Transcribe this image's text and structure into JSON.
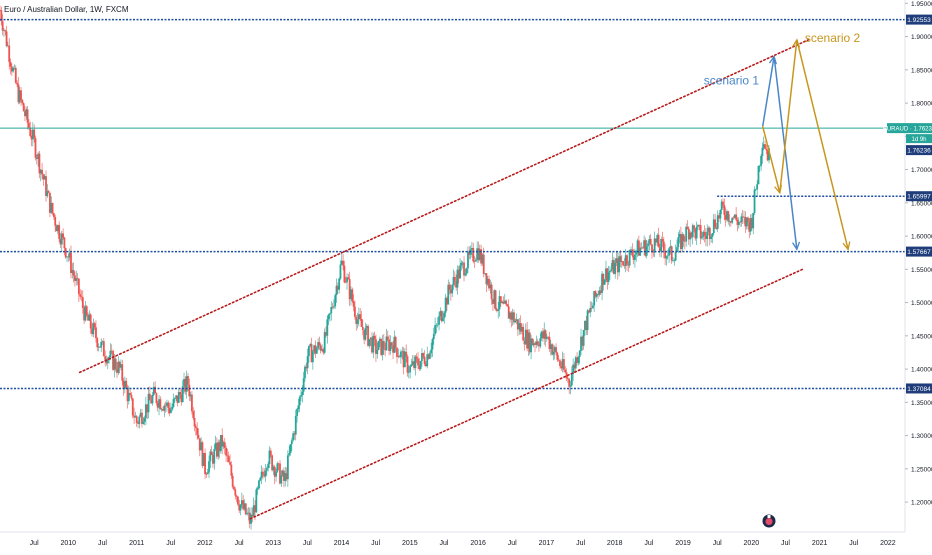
{
  "header": {
    "title": "Euro / Australian Dollar, 1W, FXCM"
  },
  "colors": {
    "up": "#26a69a",
    "down": "#ef5350",
    "level": "#1e4fa0",
    "channel": "#b71c1c",
    "scenario1": "#4a86c8",
    "scenario2": "#c8961e",
    "pair_label": "#26a69a",
    "level_label": "#1e3d7a"
  },
  "icons": {
    "logo": "tradingview-logo-icon"
  },
  "chart_data": {
    "type": "candlestick",
    "title": "Euro / Australian Dollar, 1W, FXCM",
    "x_range": [
      "2009-01",
      "2022-04"
    ],
    "ylim": [
      1.155,
      1.955
    ],
    "y_scale": "linear",
    "grid": false,
    "x_tick_labels": [
      "Jul",
      "2010",
      "Jul",
      "2011",
      "Jul",
      "2012",
      "Jul",
      "2013",
      "Jul",
      "2014",
      "Jul",
      "2015",
      "Jul",
      "2016",
      "Jul",
      "2017",
      "Jul",
      "2018",
      "Jul",
      "2019",
      "Jul",
      "2020",
      "Jul",
      "2021",
      "Jul",
      "2022"
    ],
    "y_ticks": [
      1.95,
      1.9,
      1.85,
      1.8,
      1.75,
      1.7,
      1.65,
      1.6,
      1.55,
      1.5,
      1.45,
      1.4,
      1.35,
      1.3,
      1.25,
      1.2
    ],
    "y_tick_labels": [
      "1.95000",
      "1.90000",
      "1.85000",
      "1.80000",
      "1.75000",
      "1.70000",
      "1.65000",
      "1.60000",
      "1.55000",
      "1.50000",
      "1.45000",
      "1.40000",
      "1.35000",
      "1.30000",
      "1.25000",
      "1.20000"
    ],
    "price_path": [
      [
        "2009-01",
        1.94
      ],
      [
        "2009-04",
        1.82
      ],
      [
        "2009-07",
        1.74
      ],
      [
        "2009-10",
        1.64
      ],
      [
        "2010-01",
        1.57
      ],
      [
        "2010-04",
        1.48
      ],
      [
        "2010-07",
        1.43
      ],
      [
        "2010-10",
        1.4
      ],
      [
        "2011-01",
        1.32
      ],
      [
        "2011-04",
        1.36
      ],
      [
        "2011-07",
        1.34
      ],
      [
        "2011-10",
        1.38
      ],
      [
        "2012-01",
        1.25
      ],
      [
        "2012-04",
        1.29
      ],
      [
        "2012-07",
        1.2
      ],
      [
        "2012-09",
        1.17
      ],
      [
        "2012-12",
        1.27
      ],
      [
        "2013-03",
        1.23
      ],
      [
        "2013-07",
        1.42
      ],
      [
        "2013-10",
        1.44
      ],
      [
        "2014-01",
        1.56
      ],
      [
        "2014-04",
        1.47
      ],
      [
        "2014-07",
        1.43
      ],
      [
        "2014-10",
        1.44
      ],
      [
        "2015-01",
        1.4
      ],
      [
        "2015-04",
        1.42
      ],
      [
        "2015-08",
        1.52
      ],
      [
        "2015-10",
        1.55
      ],
      [
        "2016-01",
        1.58
      ],
      [
        "2016-04",
        1.5
      ],
      [
        "2016-07",
        1.48
      ],
      [
        "2016-10",
        1.44
      ],
      [
        "2017-01",
        1.45
      ],
      [
        "2017-05",
        1.38
      ],
      [
        "2017-08",
        1.47
      ],
      [
        "2017-11",
        1.54
      ],
      [
        "2018-02",
        1.56
      ],
      [
        "2018-05",
        1.58
      ],
      [
        "2018-08",
        1.59
      ],
      [
        "2018-11",
        1.57
      ],
      [
        "2019-02",
        1.61
      ],
      [
        "2019-05",
        1.6
      ],
      [
        "2019-08",
        1.64
      ],
      [
        "2019-11",
        1.62
      ],
      [
        "2020-01",
        1.62
      ],
      [
        "2020-03",
        1.75
      ],
      [
        "2020-04",
        1.72
      ]
    ],
    "horizontal_levels": [
      {
        "value": 1.92553,
        "label": "1.92553"
      },
      {
        "value": 1.65997,
        "label": "1.65997"
      },
      {
        "value": 1.57667,
        "label": "1.57667"
      },
      {
        "value": 1.37084,
        "label": "1.37084"
      }
    ],
    "current_price": {
      "pair": "EURAUD",
      "value": 1.76234,
      "label": "EURAUD · 1.76234",
      "countdown": "1d 9h",
      "last_label": "1.76236"
    },
    "channel_lines": [
      {
        "from": [
          "2010-03",
          1.395
        ],
        "to": [
          "2020-11",
          1.895
        ]
      },
      {
        "from": [
          "2012-09",
          1.175
        ],
        "to": [
          "2020-10",
          1.55
        ]
      }
    ],
    "scenarios": [
      {
        "name": "scenario 1",
        "path": [
          [
            "2020-03",
            1.765
          ],
          [
            "2020-05",
            1.87
          ],
          [
            "2020-09",
            1.58
          ]
        ]
      },
      {
        "name": "scenario 2",
        "path": [
          [
            "2020-03",
            1.765
          ],
          [
            "2020-06",
            1.665
          ],
          [
            "2020-09",
            1.895
          ],
          [
            "2021-06",
            1.58
          ]
        ]
      }
    ]
  }
}
